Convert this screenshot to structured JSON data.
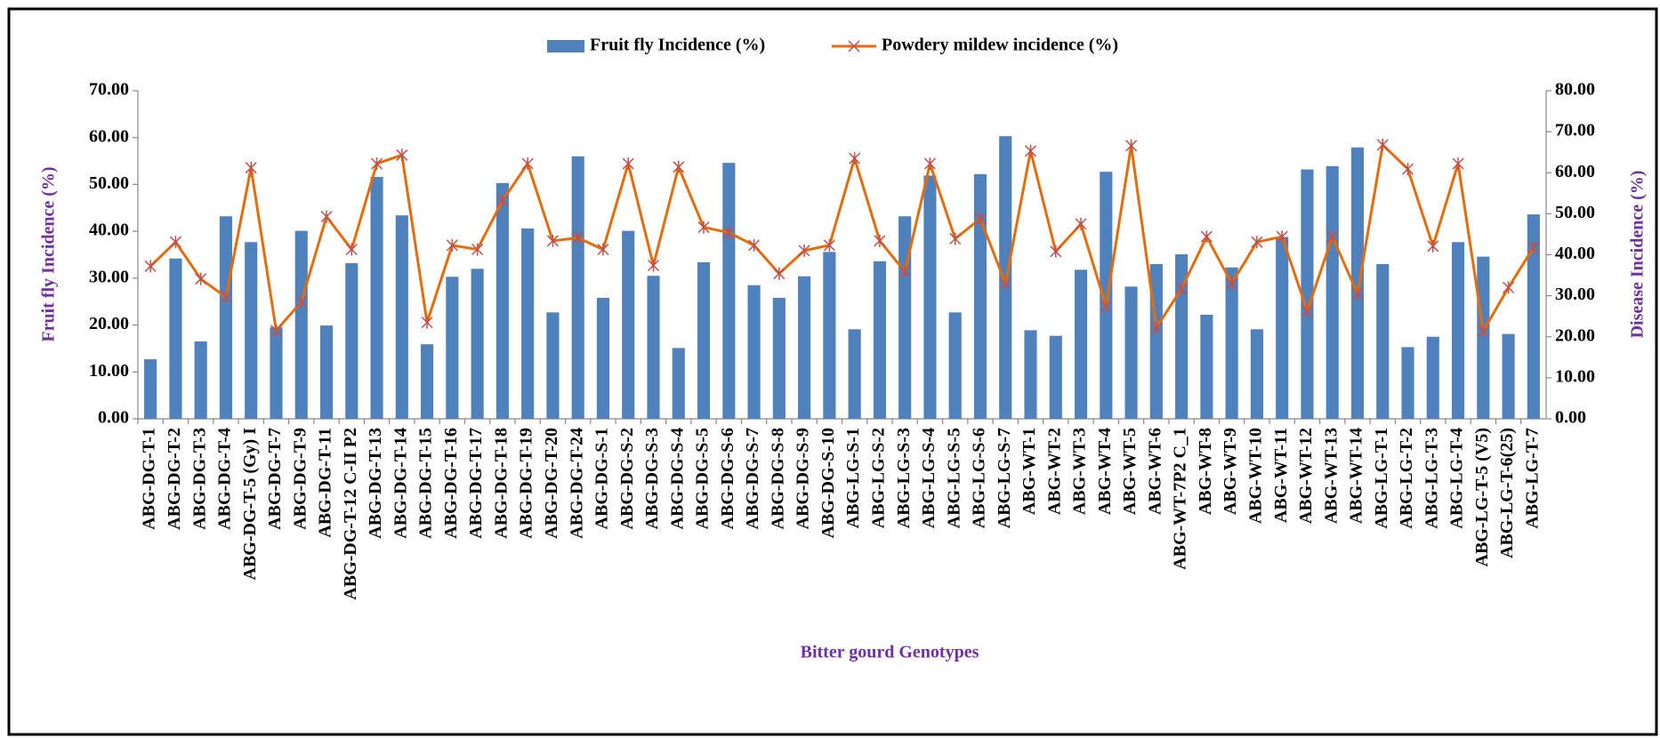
{
  "chart_data": {
    "type": "bar_line",
    "x_label": "Bitter gourd Genotypes",
    "y_label": "Fruit fly Incidence (%)",
    "y2_label": "Disease Incidence (%)",
    "categories": [
      "ABG-DG-T-1",
      "ABG-DG-T-2",
      "ABG-DG-T-3",
      "ABG-DG-T-4",
      "ABG-DG-T-5 (Gy) I",
      "ABG-DG-T-7",
      "ABG-DG-T-9",
      "ABG-DG-T-11",
      "ABG-DG-T-12 C-II P2",
      "ABG-DG-T-13",
      "ABG-DG-T-14",
      "ABG-DG-T-15",
      "ABG-DG-T-16",
      "ABG-DG-T-17",
      "ABG-DG-T-18",
      "ABG-DG-T-19",
      "ABG-DG-T-20",
      "ABG-DG-T-24",
      "ABG-DG-S-1",
      "ABG-DG-S-2",
      "ABG-DG-S-3",
      "ABG-DG-S-4",
      "ABG-DG-S-5",
      "ABG-DG-S-6",
      "ABG-DG-S-7",
      "ABG-DG-S-8",
      "ABG-DG-S-9",
      "ABG-DG-S-10",
      "ABG-LG-S-1",
      "ABG-LG-S-2",
      "ABG-LG-S-3",
      "ABG-LG-S-4",
      "ABG-LG-S-5",
      "ABG-LG-S-6",
      "ABG-LG-S-7",
      "ABG-WT-1",
      "ABG-WT-2",
      "ABG-WT-3",
      "ABG-WT-4",
      "ABG-WT-5",
      "ABG-WT-6",
      "ABG-WT-7P2 C_1",
      "ABG-WT-8",
      "ABG-WT-9",
      "ABG-WT-10",
      "ABG-WT-11",
      "ABG-WT-12",
      "ABG-WT-13",
      "ABG-WT-14",
      "ABG-LG-T-1",
      "ABG-LG-T-2",
      "ABG-LG-T-3",
      "ABG-LG-T-4",
      "ABG-LG-T-5 (V5)",
      "ABG-LG-T-6(25)",
      "ABG-LG-T-7"
    ],
    "series": [
      {
        "name": "Fruit fly Incidence (%)",
        "type": "bar",
        "color": "#4f81bd",
        "axis": "y",
        "values": [
          12.7,
          34.2,
          16.5,
          43.2,
          37.7,
          19.5,
          40.1,
          19.9,
          33.2,
          51.6,
          43.4,
          15.9,
          30.3,
          32.0,
          50.3,
          40.6,
          22.7,
          56.0,
          25.8,
          40.1,
          30.5,
          15.1,
          33.4,
          54.6,
          28.5,
          25.8,
          30.4,
          35.6,
          19.1,
          33.6,
          43.2,
          51.9,
          22.7,
          52.2,
          60.3,
          18.9,
          17.7,
          31.8,
          52.7,
          28.2,
          33.0,
          35.1,
          22.2,
          32.3,
          19.1,
          38.8,
          53.2,
          53.9,
          57.9,
          33.0,
          15.3,
          17.5,
          37.7,
          34.6,
          18.1,
          43.6
        ]
      },
      {
        "name": "Powdery mildew incidence (%)",
        "type": "line",
        "color": "#e46c0a",
        "axis": "y2",
        "values": [
          37.2,
          43.1,
          34.1,
          29.7,
          61.2,
          21.5,
          28.5,
          49.3,
          41.3,
          62.2,
          64.3,
          23.5,
          42.3,
          41.3,
          53.2,
          62.2,
          43.4,
          44.1,
          41.3,
          62.2,
          37.4,
          61.4,
          46.7,
          45.4,
          42.3,
          35.4,
          41.0,
          42.3,
          63.5,
          43.4,
          35.9,
          62.2,
          43.9,
          48.8,
          33.0,
          65.3,
          40.8,
          47.5,
          27.4,
          66.6,
          22.2,
          31.7,
          44.4,
          33.0,
          43.1,
          44.4,
          26.3,
          44.4,
          30.5,
          66.8,
          60.9,
          42.1,
          62.2,
          21.4,
          32.0,
          41.8
        ]
      }
    ],
    "ylim": [
      0,
      70
    ],
    "yticks": [
      {
        "value": 0,
        "label": "0.00"
      },
      {
        "value": 10,
        "label": "10.00"
      },
      {
        "value": 20,
        "label": "20.00"
      },
      {
        "value": 30,
        "label": "30.00"
      },
      {
        "value": 40,
        "label": "40.00"
      },
      {
        "value": 50,
        "label": "50.00"
      },
      {
        "value": 60,
        "label": "60.00"
      },
      {
        "value": 70,
        "label": "70.00"
      }
    ],
    "y2lim": [
      0,
      80
    ],
    "y2ticks": [
      {
        "value": 0,
        "label": "0.00"
      },
      {
        "value": 10,
        "label": "10.00"
      },
      {
        "value": 20,
        "label": "20.00"
      },
      {
        "value": 30,
        "label": "30.00"
      },
      {
        "value": 40,
        "label": "40.00"
      },
      {
        "value": 50,
        "label": "50.00"
      },
      {
        "value": 60,
        "label": "60.00"
      },
      {
        "value": 70,
        "label": "70.00"
      },
      {
        "value": 80,
        "label": "80.00"
      }
    ],
    "legend": "top"
  }
}
